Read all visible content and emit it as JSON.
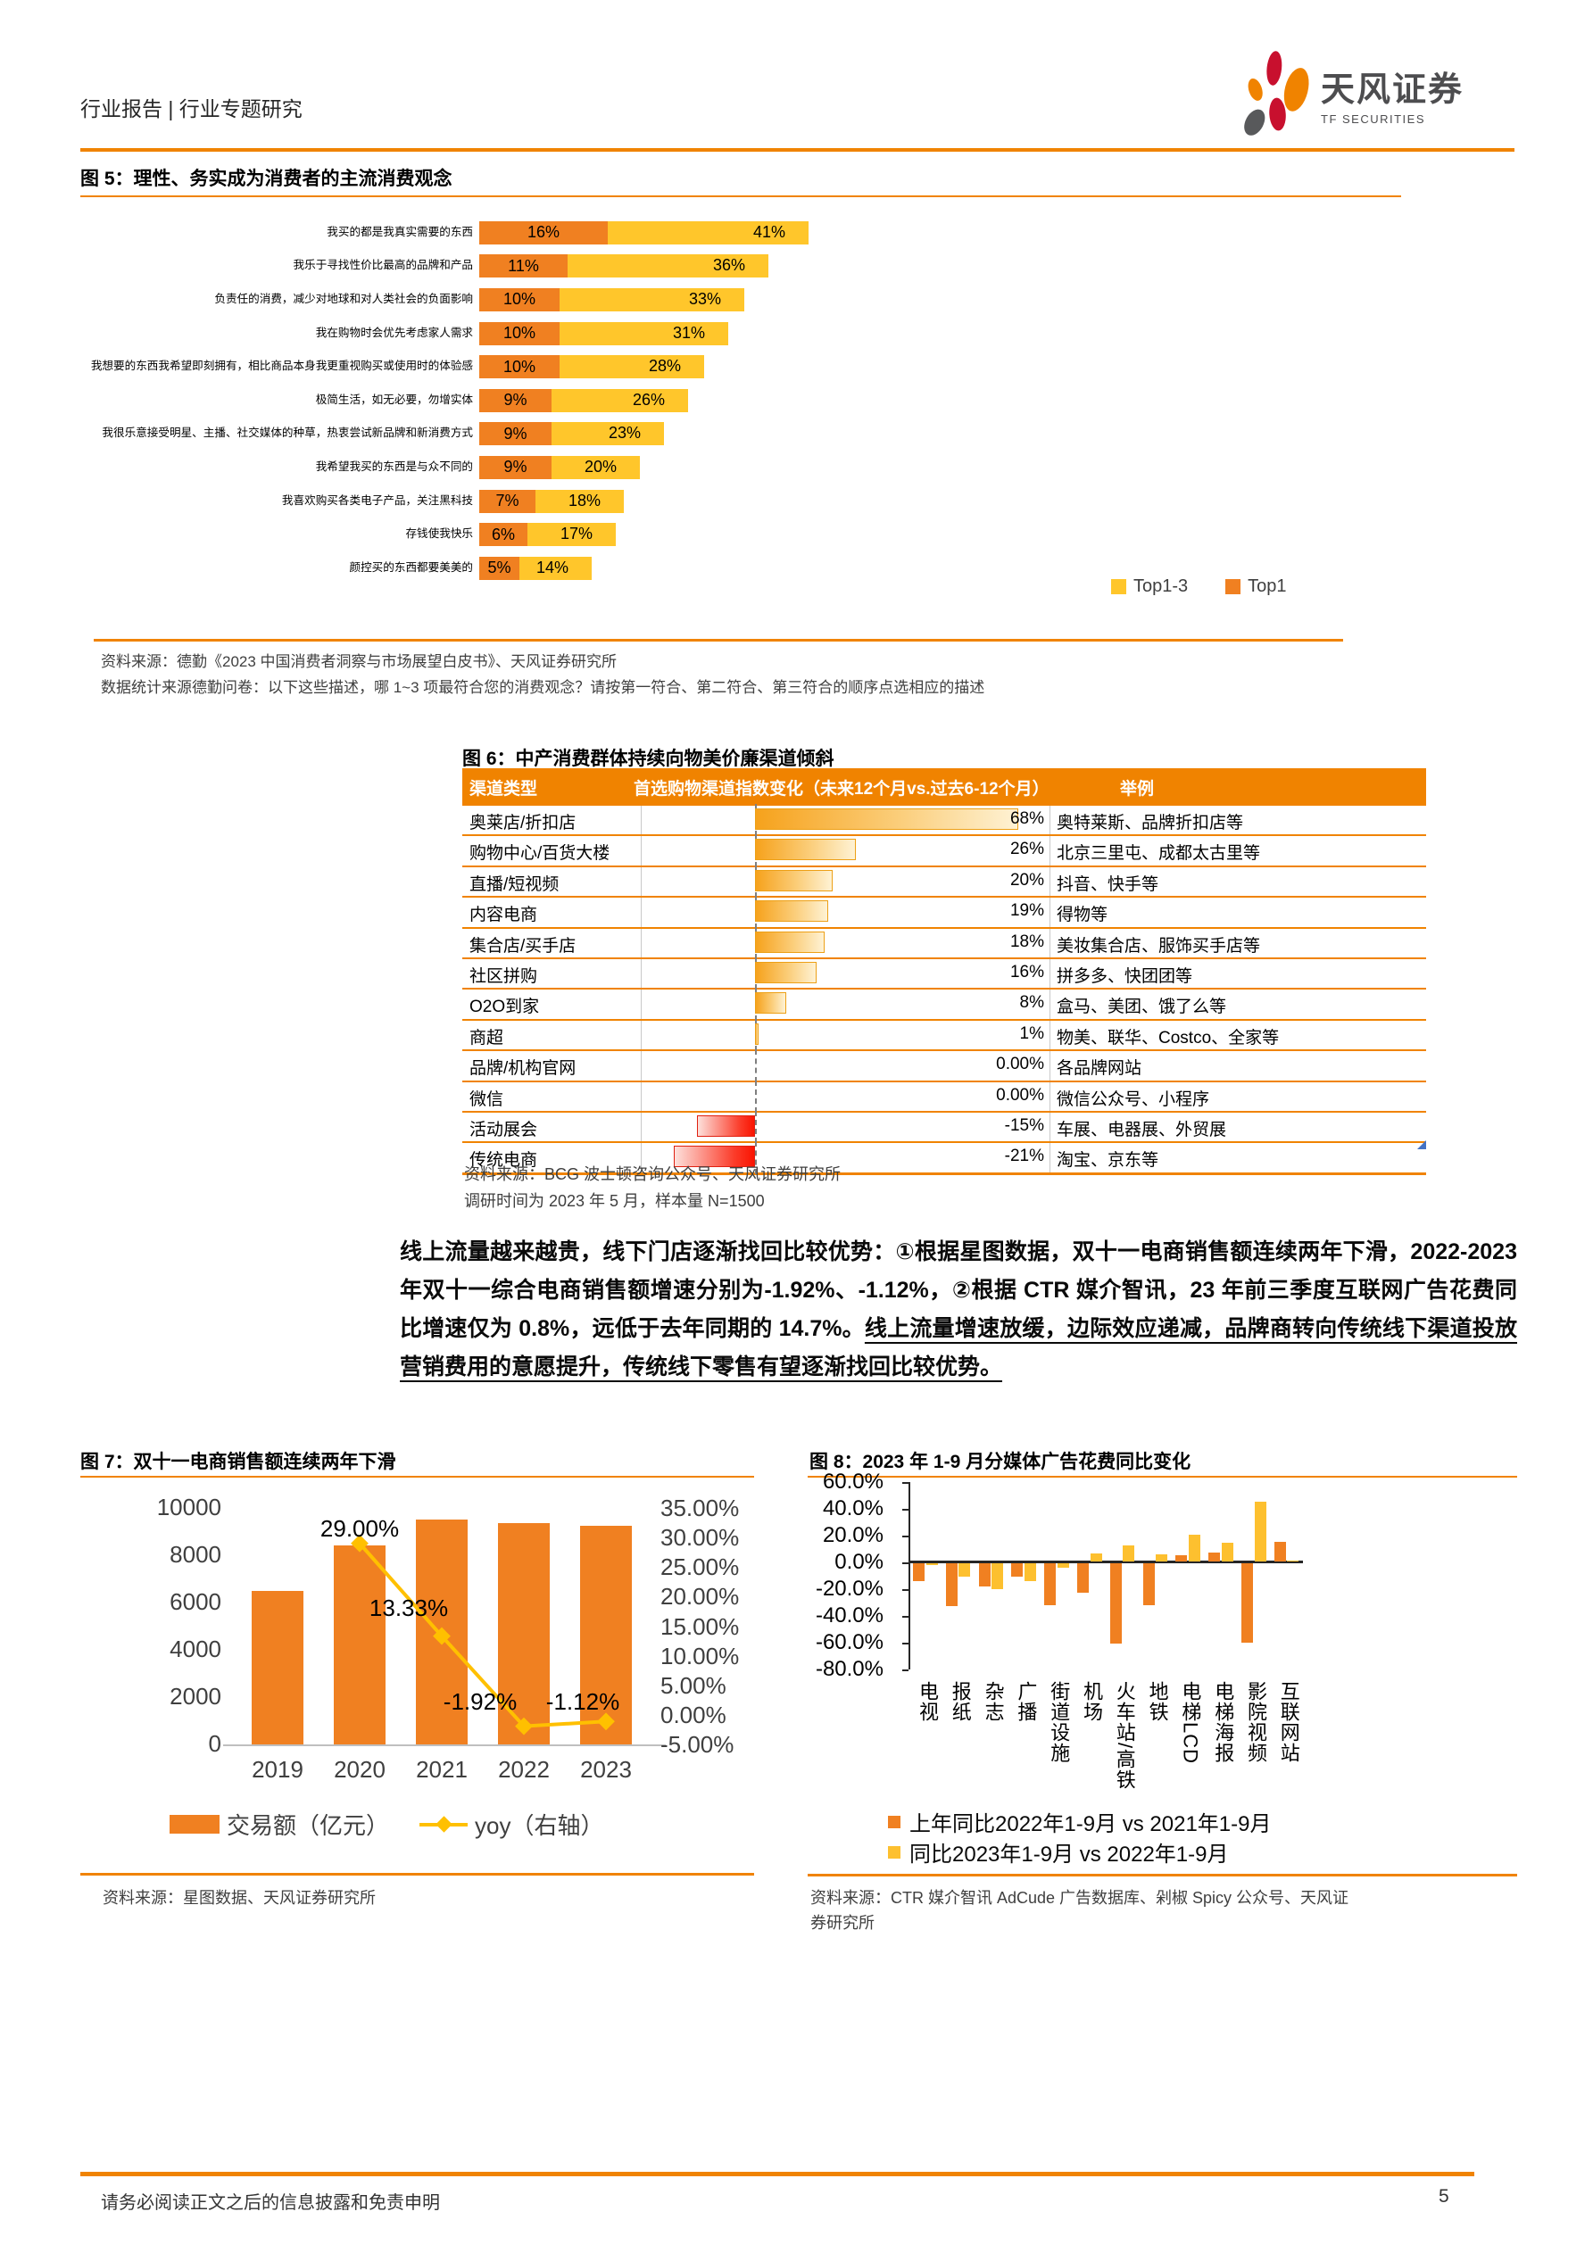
{
  "header": {
    "breadcrumb": "行业报告 | 行业专题研究",
    "brand": "天风证券",
    "brand_sub": "TF SECURITIES"
  },
  "fig5": {
    "title": "图 5：理性、务实成为消费者的主流消费观念",
    "source1": "资料来源：德勤《2023 中国消费者洞察与市场展望白皮书》、天风证券研究所",
    "source2": "数据统计来源德勤问卷：以下这些描述，哪 1~3 项最符合您的消费观念？请按第一符合、第二符合、第三符合的顺序点选相应的描述",
    "chart_data": {
      "type": "bar",
      "orientation": "horizontal",
      "stacked": true,
      "categories": [
        "我买的都是我真实需要的东西",
        "我乐于寻找性价比最高的品牌和产品",
        "负责任的消费，减少对地球和对人类社会的负面影响",
        "我在购物时会优先考虑家人需求",
        "我想要的东西我希望即刻拥有，相比商品本身我更重视购买或使用时的体验感",
        "极简生活，如无必要，勿增实体",
        "我很乐意接受明星、主播、社交媒体的种草，热衷尝试新品牌和新消费方式",
        "我希望我买的东西是与众不同的",
        "我喜欢购买各类电子产品，关注黑科技",
        "存钱使我快乐",
        "颜控买的东西都要美美的"
      ],
      "series": [
        {
          "name": "Top1",
          "color": "#F08021",
          "values": [
            16,
            11,
            10,
            10,
            10,
            9,
            9,
            9,
            7,
            6,
            5
          ]
        },
        {
          "name": "Top1-3",
          "color": "#FFC62B",
          "values": [
            41,
            36,
            33,
            31,
            28,
            26,
            23,
            20,
            18,
            17,
            14
          ]
        }
      ],
      "value_suffix": "%",
      "legend_position": "bottom-right"
    }
  },
  "fig6": {
    "title": "图 6：中产消费群体持续向物美价廉渠道倾斜",
    "source1": "资料来源：BCG 波士顿咨询公众号、天风证券研究所",
    "source2": "调研时间为 2023 年 5 月，样本量 N=1500",
    "chart_data": {
      "type": "table",
      "headers": [
        "渠道类型",
        "首选购物渠道指数变化（未来12个月vs.过去6-12个月）",
        "举例"
      ],
      "rows": [
        {
          "channel": "奥莱店/折扣店",
          "value": 68,
          "label": "68%",
          "examples": "奥特莱斯、品牌折扣店等"
        },
        {
          "channel": "购物中心/百货大楼",
          "value": 26,
          "label": "26%",
          "examples": "北京三里屯、成都太古里等"
        },
        {
          "channel": "直播/短视频",
          "value": 20,
          "label": "20%",
          "examples": "抖音、快手等"
        },
        {
          "channel": "内容电商",
          "value": 19,
          "label": "19%",
          "examples": "得物等"
        },
        {
          "channel": "集合店/买手店",
          "value": 18,
          "label": "18%",
          "examples": "美妆集合店、服饰买手店等"
        },
        {
          "channel": "社区拼购",
          "value": 16,
          "label": "16%",
          "examples": "拼多多、快团团等"
        },
        {
          "channel": "O2O到家",
          "value": 8,
          "label": "8%",
          "examples": "盒马、美团、饿了么等"
        },
        {
          "channel": "商超",
          "value": 1,
          "label": "1%",
          "examples": "物美、联华、Costco、全家等"
        },
        {
          "channel": "品牌/机构官网",
          "value": 0,
          "label": "0.00%",
          "examples": "各品牌网站"
        },
        {
          "channel": "微信",
          "value": 0,
          "label": "0.00%",
          "examples": "微信公众号、小程序"
        },
        {
          "channel": "活动展会",
          "value": -15,
          "label": "-15%",
          "examples": "车展、电器展、外贸展"
        },
        {
          "channel": "传统电商",
          "value": -21,
          "label": "-21%",
          "examples": "淘宝、京东等"
        }
      ]
    }
  },
  "paragraph": {
    "lead": "线上流量越来越贵，线下门店逐渐找回比较优势：",
    "body": "①根据星图数据，双十一电商销售额连续两年下滑，2022-2023 年双十一综合电商销售额增速分别为-1.92%、-1.12%，②根据 CTR 媒介智讯，23 年前三季度互联网广告花费同比增速仅为 0.8%，远低于去年同期的 14.7%。",
    "underlined": "线上流量增速放缓，边际效应递减，品牌商转向传统线下渠道投放营销费用的意愿提升，传统线下零售有望逐渐找回比较优势。"
  },
  "fig7": {
    "title": "图 7：双十一电商销售额连续两年下滑",
    "source": "资料来源：星图数据、天风证券研究所",
    "chart_data": {
      "type": "bar+line",
      "categories": [
        "2019",
        "2020",
        "2021",
        "2022",
        "2023"
      ],
      "series": [
        {
          "name": "交易额（亿元）",
          "type": "bar",
          "axis": "left",
          "color": "#F08021",
          "values": [
            6500,
            8403,
            9523,
            9340,
            9235
          ]
        },
        {
          "name": "yoy（右轴）",
          "type": "line",
          "axis": "right",
          "color": "#FFC000",
          "values": [
            null,
            29.0,
            13.33,
            -1.92,
            -1.12
          ]
        }
      ],
      "yoy_labels": [
        "29.00%",
        "13.33%",
        "-1.92%",
        "-1.12%"
      ],
      "y_left_ticks": [
        "10000",
        "8000",
        "6000",
        "4000",
        "2000",
        "0"
      ],
      "y_right_ticks": [
        "35.00%",
        "30.00%",
        "25.00%",
        "20.00%",
        "15.00%",
        "10.00%",
        "5.00%",
        "0.00%",
        "-5.00%"
      ],
      "ylim_left": [
        0,
        10000
      ],
      "ylim_right": [
        -5,
        35
      ]
    }
  },
  "fig8": {
    "title": "图 8：2023 年 1-9 月分媒体广告花费同比变化",
    "source1": "资料来源：CTR 媒介智讯 AdCude 广告数据库、剁椒 Spicy 公众号、天风证",
    "source2": "券研究所",
    "chart_data": {
      "type": "bar",
      "categories": [
        "电视",
        "报纸",
        "杂志",
        "广播",
        "街道设施",
        "机场",
        "火车站/高铁",
        "地铁",
        "电梯LCD",
        "电梯海报",
        "影院视频",
        "互联网站"
      ],
      "series": [
        {
          "name": "上年同比2022年1-9月 vs 2021年1-9月",
          "color": "#F08021",
          "values": [
            -13,
            -32,
            -17,
            -10,
            -31,
            -22,
            -60,
            -31,
            5,
            6.5,
            -59,
            14.7
          ]
        },
        {
          "name": "同比2023年1-9月 vs 2022年1-9月",
          "color": "#FDC02F",
          "values": [
            -1.5,
            -10,
            -19.5,
            -13.5,
            -3,
            6,
            12,
            5.5,
            20,
            14,
            44.5,
            0.8
          ]
        }
      ],
      "y_ticks": [
        "60.0%",
        "40.0%",
        "20.0%",
        "0.0%",
        "-20.0%",
        "-40.0%",
        "-60.0%",
        "-80.0%"
      ],
      "ylim": [
        -80,
        60
      ]
    }
  },
  "footer": {
    "disclaimer": "请务必阅读正文之后的信息披露和免责申明",
    "page": "5"
  },
  "colors": {
    "accent": "#F08300",
    "top1_orange": "#F08021",
    "top13_yellow": "#FFC62B",
    "line_yellow": "#FFC000",
    "negative_red": "#FB3C2A",
    "logo_crimson": "#C8102E",
    "logo_gray": "#58595B"
  }
}
